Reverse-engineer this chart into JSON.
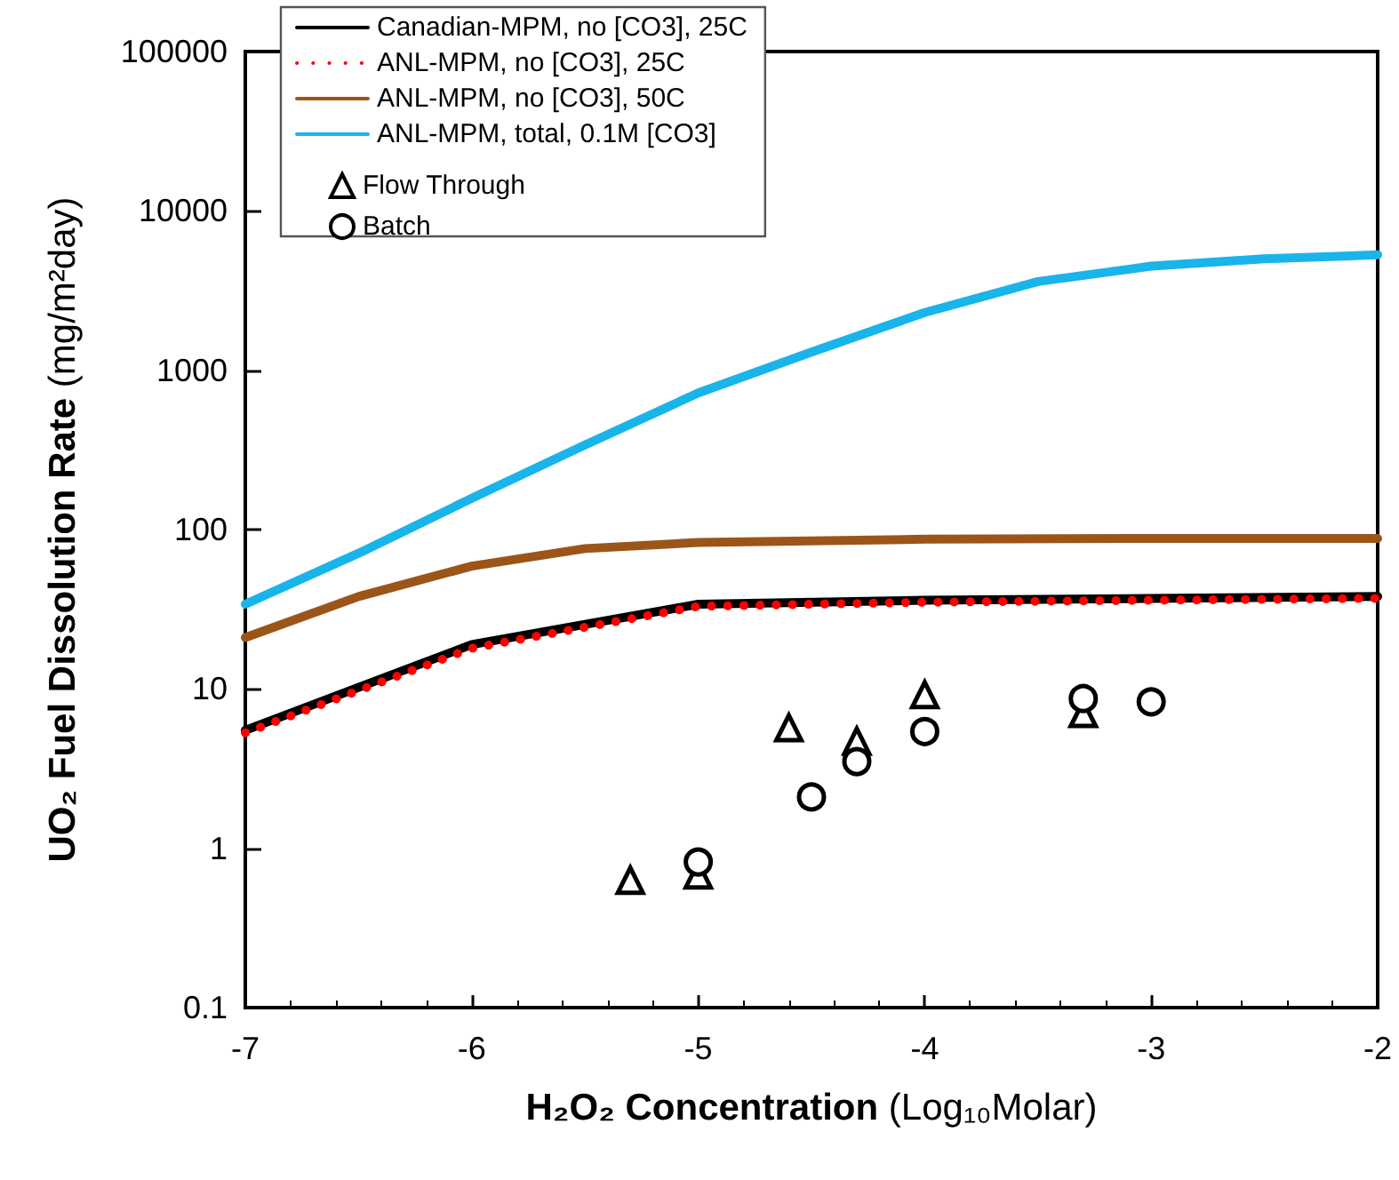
{
  "chart_data": {
    "type": "line",
    "xlabel": "H₂O₂ Concentration (Log₁₀Molar)",
    "ylabel": "UO₂ Fuel Dissolution Rate (mg/m²day)",
    "xlim": [
      -7,
      -2
    ],
    "xticks": [
      -7,
      -6,
      -5,
      -4,
      -3,
      -2
    ],
    "ylim": [
      0.1,
      100000
    ],
    "yticks": [
      0.1,
      1,
      10,
      100,
      1000,
      10000,
      100000
    ],
    "log": "y",
    "grid": false,
    "legend": "top left",
    "marker": "none",
    "series": [
      {
        "name": "Canadian-MPM, no [CO3], 25C",
        "color": "#000000",
        "line_style": "solid",
        "x": [
          -7,
          -6,
          -5,
          -4,
          -3,
          -2
        ],
        "values": [
          5.5,
          19,
          34,
          36,
          37,
          38
        ]
      },
      {
        "name": "ANL-MPM, no [CO3], 25C",
        "color": "#ff0000",
        "line_style": "dotted",
        "x": [
          -7,
          -6,
          -5,
          -4,
          -3,
          -2
        ],
        "values": [
          5.3,
          18,
          33,
          35,
          36,
          37
        ]
      },
      {
        "name": "ANL-MPM, no [CO3], 50C",
        "color": "#9c5518",
        "line_style": "solid",
        "x": [
          -7,
          -6.5,
          -6,
          -5.5,
          -5,
          -4,
          -3,
          -2
        ],
        "values": [
          21,
          38,
          59,
          76,
          83,
          87,
          88,
          88
        ]
      },
      {
        "name": "ANL-MPM, total, 0.1M [CO3]",
        "color": "#19b4ea",
        "line_style": "solid",
        "x": [
          -7,
          -6.5,
          -6,
          -5.5,
          -5,
          -4.5,
          -4,
          -3.5,
          -3,
          -2.5,
          -2
        ],
        "values": [
          34,
          71,
          157,
          340,
          720,
          1300,
          2300,
          3600,
          4500,
          5000,
          5300
        ]
      },
      {
        "name": "Flow Through",
        "type": "scatter",
        "marker": "triangle",
        "color": "#000000",
        "x": [
          -5.3,
          -5,
          -4.6,
          -4.3,
          -4,
          -3.3
        ],
        "values": [
          0.63,
          0.68,
          5.7,
          4.7,
          9.2,
          7
        ]
      },
      {
        "name": "Batch",
        "type": "scatter",
        "marker": "circle",
        "color": "#000000",
        "x": [
          -5,
          -4.5,
          -4.3,
          -4,
          -3.3,
          -3
        ],
        "values": [
          0.82,
          2.1,
          3.5,
          5.4,
          8.7,
          8.3
        ]
      }
    ]
  }
}
